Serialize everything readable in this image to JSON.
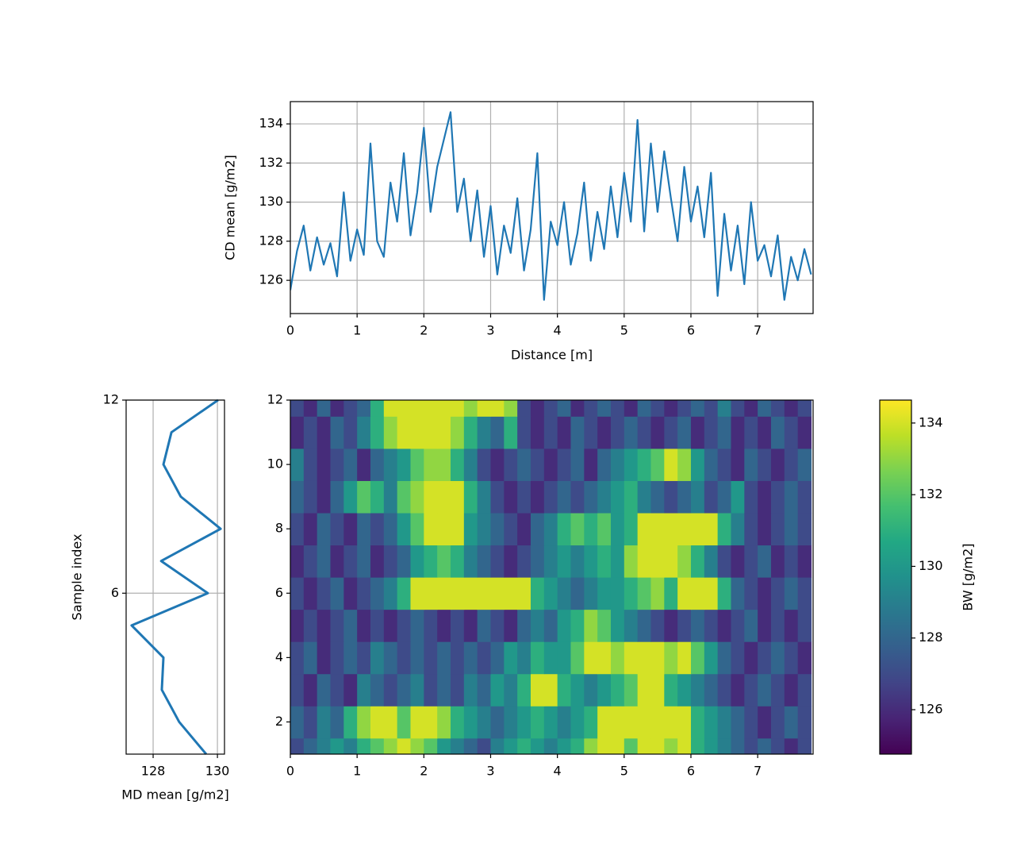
{
  "chart_data": [
    {
      "type": "line",
      "xlabel": "Distance [m]",
      "ylabel": "CD mean [g/m2]",
      "color": "#1f77b4",
      "grid": true,
      "xlim": [
        0,
        7.83
      ],
      "ylim": [
        124.3,
        135.14
      ],
      "xticks": [
        0,
        1,
        2,
        3,
        4,
        5,
        6,
        7
      ],
      "yticks": [
        126,
        128,
        130,
        132,
        134
      ],
      "x": [
        0.0,
        0.1,
        0.2,
        0.3,
        0.4,
        0.5,
        0.6,
        0.7,
        0.8,
        0.9,
        1.0,
        1.1,
        1.2,
        1.3,
        1.4,
        1.5,
        1.6,
        1.7,
        1.8,
        1.9,
        2.0,
        2.1,
        2.2,
        2.3,
        2.4,
        2.5,
        2.6,
        2.7,
        2.8,
        2.9,
        3.0,
        3.1,
        3.2,
        3.3,
        3.4,
        3.5,
        3.6,
        3.7,
        3.8,
        3.9,
        4.0,
        4.1,
        4.2,
        4.3,
        4.4,
        4.5,
        4.6,
        4.7,
        4.8,
        4.9,
        5.0,
        5.1,
        5.2,
        5.3,
        5.4,
        5.5,
        5.6,
        5.7,
        5.8,
        5.9,
        6.0,
        6.1,
        6.2,
        6.3,
        6.4,
        6.5,
        6.6,
        6.7,
        6.8,
        6.9,
        7.0,
        7.1,
        7.2,
        7.3,
        7.4,
        7.5,
        7.6,
        7.7,
        7.8
      ],
      "values": [
        125.5,
        127.5,
        128.8,
        126.5,
        128.2,
        126.8,
        127.9,
        126.2,
        130.5,
        127.0,
        128.6,
        127.3,
        133.0,
        128.0,
        127.2,
        131.0,
        129.0,
        132.5,
        128.3,
        130.5,
        133.8,
        129.5,
        131.8,
        133.2,
        134.6,
        129.5,
        131.2,
        128.0,
        130.6,
        127.2,
        129.8,
        126.3,
        128.8,
        127.4,
        130.2,
        126.5,
        128.6,
        132.5,
        125.0,
        129.0,
        127.8,
        130.0,
        126.8,
        128.4,
        131.0,
        127.0,
        129.5,
        127.6,
        130.8,
        128.2,
        131.5,
        129.0,
        134.2,
        128.5,
        133.0,
        129.5,
        132.6,
        130.2,
        128.0,
        131.8,
        129.0,
        130.8,
        128.2,
        131.5,
        125.2,
        129.4,
        126.5,
        128.8,
        125.8,
        130.0,
        127.0,
        127.8,
        126.2,
        128.3,
        125.0,
        127.2,
        126.0,
        127.6,
        126.3
      ]
    },
    {
      "type": "hline",
      "xlabel": "MD mean [g/m2]",
      "ylabel": "Sample index",
      "color": "#1f77b4",
      "grid": true,
      "xlim": [
        127.16,
        130.22
      ],
      "ylim": [
        1,
        12
      ],
      "xticks": [
        128,
        130
      ],
      "yticks": [
        6,
        12
      ],
      "y": [
        1,
        2,
        3,
        4,
        5,
        6,
        7,
        8,
        9,
        10,
        11,
        12
      ],
      "values": [
        129.65,
        128.81,
        128.27,
        128.32,
        127.33,
        129.7,
        128.25,
        130.1,
        128.86,
        128.32,
        128.57,
        130.02
      ]
    },
    {
      "type": "heatmap",
      "colormap": "viridis",
      "xlim": [
        0,
        7.83
      ],
      "ylim": [
        1,
        12
      ],
      "xticks": [
        0,
        1,
        2,
        3,
        4,
        5,
        6,
        7
      ],
      "yticks": [
        2,
        4,
        6,
        8,
        10,
        12
      ],
      "colorbar": {
        "label": "BW [g/m2]",
        "clim": [
          124.76,
          134.64
        ],
        "ticks": [
          126,
          128,
          130,
          132,
          134
        ]
      },
      "x": [
        0.1,
        0.3,
        0.5,
        0.7,
        0.9,
        1.1,
        1.3,
        1.5,
        1.7,
        1.9,
        2.1,
        2.3,
        2.5,
        2.7,
        2.9,
        3.1,
        3.3,
        3.5,
        3.7,
        3.9,
        4.1,
        4.3,
        4.5,
        4.7,
        4.9,
        5.1,
        5.3,
        5.5,
        5.7,
        5.9,
        6.1,
        6.3,
        6.5,
        6.7,
        6.9,
        7.1,
        7.3,
        7.5,
        7.7
      ],
      "y": [
        1,
        2,
        3,
        4,
        5,
        6,
        7,
        8,
        9,
        10,
        11,
        12
      ],
      "z": [
        [
          127,
          128,
          129,
          130,
          129,
          131,
          132,
          133,
          134,
          133,
          132,
          130,
          129,
          128,
          127,
          129,
          130,
          131,
          130,
          129,
          130,
          131,
          133,
          134,
          134,
          132,
          134,
          134,
          133,
          134,
          131,
          130,
          129,
          128,
          127,
          128,
          127,
          126,
          127
        ],
        [
          128,
          127,
          129,
          128,
          131,
          133,
          134,
          134,
          132,
          134,
          134,
          133,
          131,
          130,
          129,
          128,
          129,
          130,
          131,
          130,
          129,
          130,
          131,
          134,
          134,
          134,
          134,
          134,
          134,
          134,
          131,
          130,
          129,
          128,
          127,
          126,
          127,
          128,
          127
        ],
        [
          127,
          126,
          128,
          127,
          126,
          129,
          128,
          127,
          128,
          129,
          127,
          128,
          127,
          129,
          128,
          130,
          129,
          131,
          134,
          134,
          131,
          130,
          129,
          130,
          131,
          132,
          134,
          134,
          131,
          130,
          129,
          128,
          127,
          126,
          127,
          128,
          127,
          126,
          127
        ],
        [
          127,
          128,
          126,
          127,
          128,
          127,
          129,
          128,
          127,
          128,
          127,
          128,
          127,
          128,
          127,
          128,
          130,
          129,
          131,
          130,
          130,
          132,
          134,
          134,
          133,
          134,
          134,
          134,
          133,
          134,
          132,
          130,
          128,
          127,
          126,
          127,
          128,
          127,
          126
        ],
        [
          126,
          127,
          126,
          127,
          128,
          126,
          127,
          126,
          127,
          128,
          127,
          126,
          127,
          126,
          128,
          127,
          126,
          128,
          129,
          128,
          130,
          131,
          133,
          132,
          130,
          129,
          128,
          127,
          126,
          127,
          128,
          127,
          126,
          127,
          128,
          126,
          127,
          126,
          127
        ],
        [
          127,
          126,
          127,
          128,
          126,
          127,
          128,
          129,
          131,
          134,
          134,
          134,
          134,
          134,
          134,
          134,
          134,
          134,
          131,
          130,
          129,
          128,
          129,
          130,
          130,
          131,
          132,
          133,
          131,
          134,
          134,
          134,
          131,
          128,
          127,
          126,
          127,
          128,
          127
        ],
        [
          126,
          127,
          128,
          126,
          127,
          128,
          126,
          127,
          128,
          130,
          131,
          132,
          131,
          129,
          128,
          127,
          126,
          127,
          128,
          129,
          130,
          129,
          130,
          131,
          130,
          133,
          134,
          134,
          134,
          133,
          131,
          129,
          127,
          126,
          127,
          128,
          126,
          127,
          126
        ],
        [
          127,
          126,
          128,
          127,
          126,
          128,
          127,
          128,
          130,
          132,
          134,
          134,
          134,
          130,
          129,
          128,
          127,
          126,
          128,
          129,
          131,
          132,
          131,
          132,
          130,
          131,
          134,
          134,
          134,
          134,
          134,
          134,
          131,
          129,
          127,
          126,
          127,
          128,
          127
        ],
        [
          128,
          127,
          126,
          128,
          130,
          132,
          131,
          129,
          132,
          133,
          134,
          134,
          134,
          131,
          129,
          127,
          126,
          127,
          126,
          127,
          128,
          127,
          128,
          129,
          130,
          131,
          129,
          128,
          127,
          128,
          129,
          127,
          128,
          130,
          127,
          126,
          127,
          128,
          127
        ],
        [
          129,
          127,
          126,
          127,
          128,
          126,
          128,
          129,
          130,
          132,
          133,
          133,
          131,
          129,
          127,
          126,
          127,
          128,
          127,
          126,
          127,
          128,
          126,
          128,
          129,
          130,
          131,
          132,
          134,
          133,
          130,
          128,
          127,
          126,
          128,
          127,
          126,
          127,
          128
        ],
        [
          126,
          127,
          126,
          128,
          127,
          129,
          131,
          133,
          134,
          134,
          134,
          134,
          133,
          131,
          129,
          128,
          131,
          127,
          126,
          127,
          126,
          128,
          127,
          126,
          127,
          128,
          127,
          126,
          127,
          128,
          126,
          127,
          128,
          126,
          127,
          126,
          128,
          127,
          126
        ],
        [
          127,
          126,
          128,
          126,
          127,
          128,
          131,
          134,
          134,
          134,
          134,
          134,
          134,
          133,
          134,
          134,
          133,
          127,
          126,
          127,
          128,
          126,
          127,
          128,
          127,
          126,
          128,
          127,
          126,
          127,
          128,
          127,
          129,
          127,
          126,
          128,
          127,
          126,
          127
        ]
      ]
    }
  ]
}
